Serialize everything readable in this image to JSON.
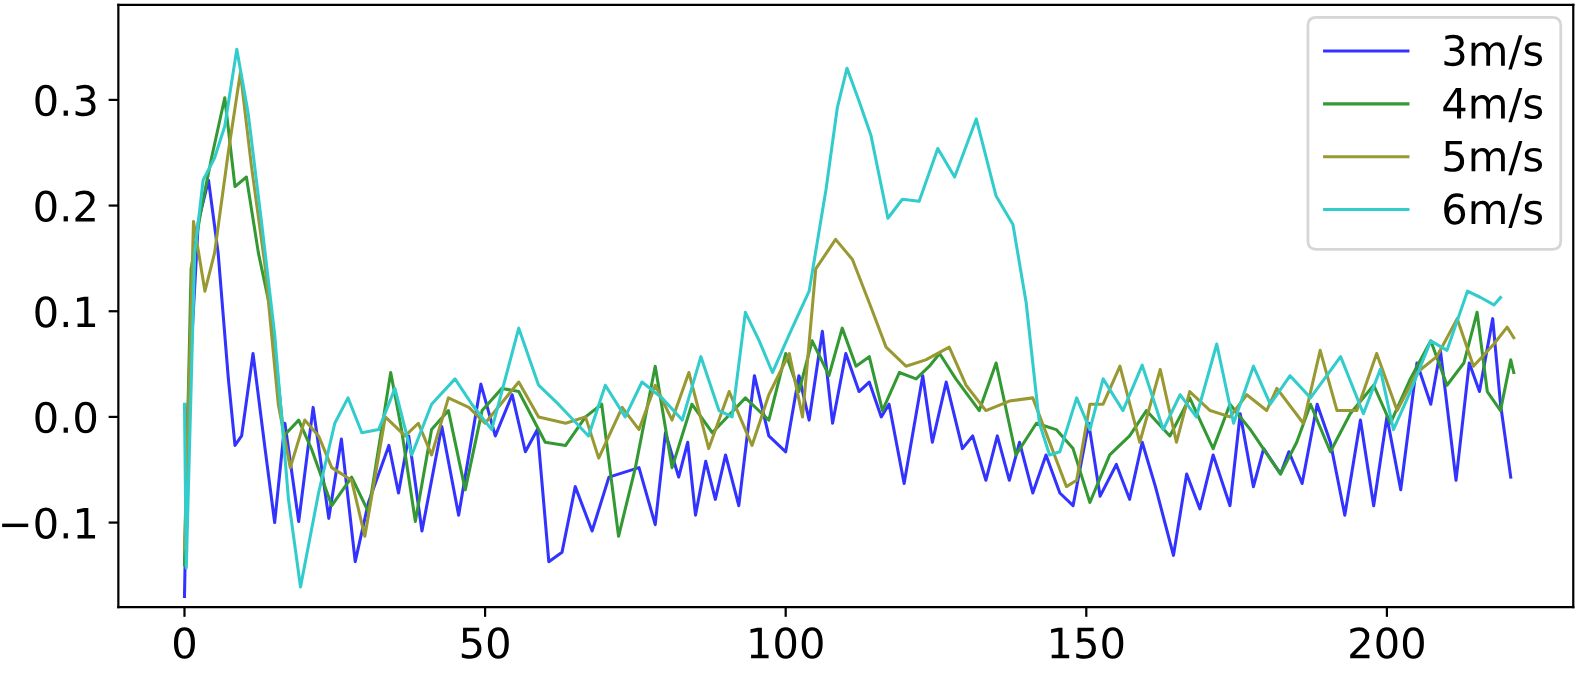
{
  "chart_data": {
    "type": "line",
    "xlim": [
      -11,
      231
    ],
    "ylim": [
      -0.18,
      0.39
    ],
    "xticks": [
      0,
      50,
      100,
      150,
      200
    ],
    "yticks": [
      {
        "value": -0.1,
        "label": "−0.1"
      },
      {
        "value": 0.0,
        "label": "0.0"
      },
      {
        "value": 0.1,
        "label": "0.1"
      },
      {
        "value": 0.2,
        "label": "0.2"
      },
      {
        "value": 0.3,
        "label": "0.3"
      }
    ],
    "grid": false,
    "legend": "top right",
    "marker": "none",
    "line_style": "solid",
    "series": [
      {
        "name": "3m/s",
        "color": "#3333ff",
        "x": [
          0,
          0.6,
          2.3,
          4,
          5.6,
          7.3,
          8.4,
          9.5,
          11.4,
          13.4,
          15,
          16.7,
          19,
          21.4,
          24,
          26.1,
          28.4,
          30.6,
          34,
          35.6,
          37.3,
          39.5,
          42.8,
          45.6,
          49.3,
          51.7,
          54.5,
          56.7,
          58.7,
          60.6,
          62.8,
          65,
          67.8,
          70.6,
          75.6,
          78.3,
          80,
          82.2,
          83.7,
          85,
          86.7,
          88.3,
          90,
          92.2,
          94.8,
          97.2,
          100,
          102.2,
          103.9,
          106.1,
          107.8,
          110,
          112.2,
          113.9,
          115.9,
          117.2,
          119.7,
          122.8,
          124.4,
          126.7,
          129.4,
          131.1,
          133.3,
          135.2,
          137.2,
          138.9,
          141.1,
          143.3,
          145.6,
          147.8,
          150.4,
          152.3,
          155,
          157.2,
          159.3,
          161.5,
          164.5,
          166.7,
          168.9,
          171.1,
          173.9,
          175.6,
          177.8,
          179.5,
          182.3,
          183.7,
          185.9,
          188.4,
          190.6,
          193,
          195.6,
          197.8,
          200,
          202.3,
          205,
          207.3,
          208.9,
          211.5,
          213.7,
          215.4,
          217.6,
          218.9,
          220.6
        ],
        "values": [
          -0.17,
          0.01,
          0.185,
          0.224,
          0.155,
          0.036,
          -0.027,
          -0.018,
          0.06,
          -0.03,
          -0.1,
          -0.006,
          -0.099,
          0.009,
          -0.096,
          -0.021,
          -0.137,
          -0.081,
          -0.027,
          -0.072,
          -0.018,
          -0.108,
          -0.009,
          -0.093,
          0.031,
          -0.018,
          0.021,
          -0.033,
          -0.012,
          -0.137,
          -0.128,
          -0.066,
          -0.108,
          -0.057,
          -0.048,
          -0.102,
          -0.015,
          -0.057,
          -0.024,
          -0.093,
          -0.042,
          -0.078,
          -0.036,
          -0.084,
          0.039,
          -0.018,
          -0.033,
          0.039,
          -0.003,
          0.081,
          -0.006,
          0.06,
          0.024,
          0.033,
          0.0,
          0.012,
          -0.063,
          0.039,
          -0.024,
          0.033,
          -0.03,
          -0.018,
          -0.06,
          -0.018,
          -0.06,
          -0.024,
          -0.072,
          -0.036,
          -0.072,
          -0.084,
          -0.006,
          -0.075,
          -0.045,
          -0.078,
          -0.024,
          -0.066,
          -0.131,
          -0.054,
          -0.087,
          -0.036,
          -0.084,
          0.003,
          -0.066,
          -0.03,
          -0.054,
          -0.033,
          -0.063,
          0.012,
          -0.024,
          -0.093,
          -0.003,
          -0.084,
          0.0,
          -0.069,
          0.051,
          0.012,
          0.063,
          -0.06,
          0.051,
          0.024,
          0.093,
          0.012,
          -0.057
        ]
      },
      {
        "name": "4m/s",
        "color": "#339933",
        "x": [
          0,
          1.1,
          2.8,
          4.5,
          6.7,
          8.4,
          10.3,
          12.3,
          14.5,
          16.5,
          19,
          21.1,
          24.5,
          27.8,
          30.6,
          34.3,
          36.1,
          38.4,
          41.1,
          43.9,
          46.7,
          49.5,
          52.8,
          55.6,
          60,
          63.4,
          66.7,
          69.4,
          72.2,
          75,
          78.3,
          81.1,
          84.4,
          87.8,
          93.3,
          97.2,
          100,
          102.2,
          104.4,
          107.2,
          109.4,
          111.7,
          113.9,
          116.1,
          118.9,
          121.7,
          123.9,
          125.6,
          128.3,
          132.2,
          135,
          138.3,
          141.7,
          145,
          147.8,
          150.6,
          153.9,
          157.2,
          160,
          163.9,
          167.2,
          171.1,
          173.9,
          177.3,
          182.3,
          185,
          187.3,
          190.6,
          193.9,
          197.8,
          200.6,
          203.9,
          207.3,
          210,
          212.8,
          215,
          216.7,
          218.9,
          220.6,
          221.1
        ],
        "values": [
          -0.14,
          0.14,
          0.197,
          0.245,
          0.302,
          0.218,
          0.227,
          0.155,
          0.096,
          -0.018,
          -0.003,
          -0.03,
          -0.084,
          -0.057,
          -0.09,
          0.042,
          -0.012,
          -0.099,
          -0.012,
          0.006,
          -0.069,
          0.006,
          0.027,
          0.024,
          -0.024,
          -0.027,
          0.0,
          0.012,
          -0.113,
          -0.048,
          0.048,
          -0.048,
          0.012,
          -0.015,
          0.018,
          -0.003,
          0.06,
          0.024,
          0.072,
          0.039,
          0.084,
          0.048,
          0.057,
          0.006,
          0.042,
          0.036,
          0.048,
          0.06,
          0.036,
          0.006,
          0.051,
          -0.036,
          -0.006,
          -0.012,
          -0.03,
          -0.081,
          -0.036,
          -0.018,
          0.006,
          -0.018,
          0.018,
          -0.03,
          0.012,
          -0.012,
          -0.054,
          -0.024,
          0.012,
          -0.033,
          0.003,
          0.03,
          -0.006,
          0.036,
          0.072,
          0.03,
          0.051,
          0.099,
          0.024,
          0.006,
          0.054,
          0.042
        ]
      },
      {
        "name": "5m/s",
        "color": "#999933",
        "x": [
          0,
          1.5,
          3.4,
          5,
          7.3,
          9.3,
          11.1,
          13.4,
          15.6,
          17.6,
          20,
          22.3,
          24.5,
          27.8,
          30,
          33.4,
          36.7,
          38.9,
          41.1,
          43.9,
          47.3,
          50,
          55.6,
          58.9,
          63.4,
          66.7,
          68.9,
          72.8,
          75.6,
          78.3,
          81.1,
          83.9,
          87.2,
          90.6,
          94.4,
          97.2,
          100.6,
          102.8,
          105,
          108.3,
          111.1,
          113.9,
          116.7,
          120,
          123.3,
          127.2,
          130,
          133.3,
          137.2,
          141.1,
          143.9,
          146.7,
          148.4,
          150.6,
          152.8,
          155.6,
          158.9,
          162.3,
          165,
          167.2,
          170.6,
          173.9,
          176.7,
          180,
          181.7,
          186.1,
          188.9,
          191.7,
          195,
          198.3,
          201.7,
          205,
          208.3,
          211.7,
          214.4,
          217.8,
          220,
          221.1
        ],
        "values": [
          -0.125,
          0.185,
          0.119,
          0.155,
          0.251,
          0.326,
          0.239,
          0.143,
          0.012,
          -0.048,
          -0.003,
          -0.018,
          -0.048,
          -0.06,
          -0.113,
          0.0,
          -0.018,
          -0.006,
          -0.036,
          0.018,
          0.009,
          -0.006,
          0.033,
          0.0,
          -0.006,
          0.0,
          -0.039,
          0.009,
          -0.012,
          0.03,
          -0.003,
          0.042,
          -0.03,
          0.024,
          -0.027,
          0.021,
          0.06,
          0.0,
          0.14,
          0.168,
          0.149,
          0.108,
          0.066,
          0.048,
          0.054,
          0.066,
          0.03,
          0.006,
          0.015,
          0.018,
          -0.024,
          -0.066,
          -0.06,
          0.012,
          0.012,
          0.048,
          -0.024,
          0.045,
          -0.024,
          0.024,
          0.006,
          0.0,
          0.021,
          0.006,
          0.027,
          -0.006,
          0.063,
          0.006,
          0.006,
          0.06,
          0.006,
          0.042,
          0.057,
          0.093,
          0.048,
          0.069,
          0.085,
          0.075
        ]
      },
      {
        "name": "6m/s",
        "color": "#33cccc",
        "x": [
          0,
          0.3,
          1.7,
          3.1,
          5,
          6.7,
          8.7,
          10.6,
          12.8,
          15,
          17.3,
          19.3,
          22.3,
          25,
          27.2,
          29.5,
          32.3,
          35,
          37.8,
          41.1,
          45,
          47.8,
          51.1,
          55.6,
          58.9,
          62.2,
          67.2,
          70,
          73.3,
          76.1,
          79.4,
          82.8,
          85.9,
          88.9,
          91.1,
          93.3,
          95.6,
          97.8,
          100.6,
          103.9,
          106.7,
          108.6,
          110.2,
          112.2,
          114.2,
          117,
          119.4,
          122.2,
          125.3,
          128.1,
          131.7,
          135,
          137.8,
          140,
          142.2,
          143.9,
          145.6,
          148.4,
          150.6,
          152.8,
          156.1,
          159.3,
          162.8,
          165.6,
          168.3,
          171.7,
          174.5,
          177.8,
          180.6,
          183.9,
          187.3,
          192.3,
          196.1,
          198.9,
          201.1,
          203.9,
          207.3,
          210,
          213.4,
          215.6,
          217.8,
          218.9
        ],
        "values": [
          0.012,
          -0.143,
          0.155,
          0.224,
          0.245,
          0.275,
          0.348,
          0.287,
          0.185,
          0.078,
          -0.078,
          -0.161,
          -0.072,
          -0.006,
          0.018,
          -0.015,
          -0.012,
          0.027,
          -0.036,
          0.012,
          0.036,
          0.012,
          -0.012,
          0.084,
          0.03,
          0.012,
          -0.018,
          0.03,
          0.0,
          0.033,
          0.018,
          -0.003,
          0.057,
          0.006,
          0.0,
          0.099,
          0.072,
          0.042,
          0.078,
          0.119,
          0.215,
          0.293,
          0.33,
          0.299,
          0.266,
          0.188,
          0.206,
          0.204,
          0.254,
          0.227,
          0.282,
          0.209,
          0.182,
          0.108,
          -0.006,
          -0.036,
          -0.033,
          0.018,
          -0.012,
          0.036,
          0.006,
          0.049,
          -0.012,
          0.021,
          0.0,
          0.069,
          -0.006,
          0.048,
          0.012,
          0.039,
          0.018,
          0.057,
          0.003,
          0.045,
          -0.012,
          0.024,
          0.072,
          0.063,
          0.119,
          0.113,
          0.106,
          0.113
        ]
      }
    ]
  }
}
